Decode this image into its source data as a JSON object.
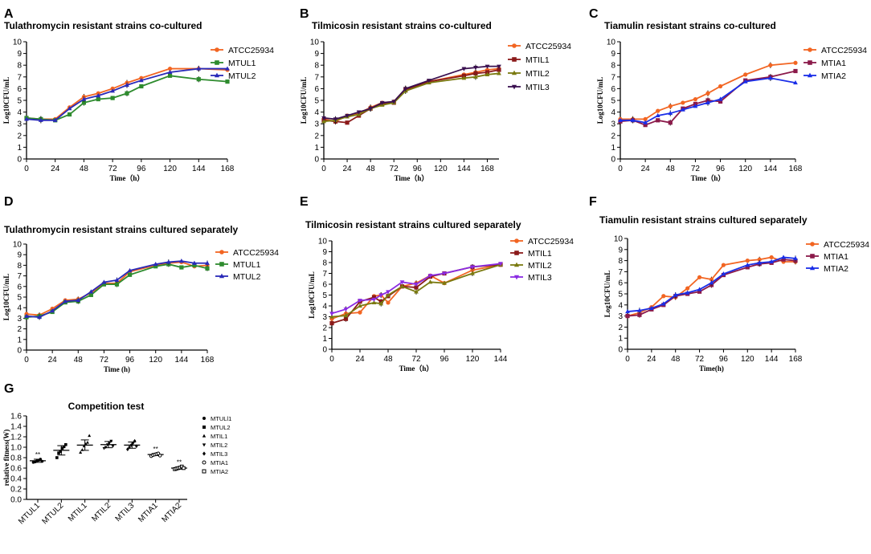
{
  "figure": {
    "colors": {
      "ATCC25934": "#f26522",
      "MTUL1": "#2e8b2e",
      "MTUL2": "#2a2ab8",
      "MTIL1": "#8b1a1a",
      "MTIL2": "#7a7a10",
      "MTIL3": "#3a1050",
      "MTIL3_sep": "#8a2be2",
      "MTIA1": "#8b1a4a",
      "MTIA2": "#1a2ee8"
    }
  },
  "chart_data": [
    {
      "panel": "A",
      "type": "line",
      "title": "Tulathromycin resistant strains co-cultured",
      "xlabel": "Time（h）",
      "ylabel": "Log10CFU/mL",
      "xlim": [
        0,
        168
      ],
      "ylim": [
        0,
        10
      ],
      "xticks": [
        0,
        24,
        48,
        72,
        96,
        120,
        144,
        168
      ],
      "yticks": [
        0,
        1,
        2,
        3,
        4,
        5,
        6,
        7,
        8,
        9,
        10
      ],
      "series": [
        {
          "name": "ATCC25934",
          "color_key": "ATCC25934",
          "marker": "circle",
          "x": [
            0,
            12,
            24,
            36,
            48,
            60,
            72,
            84,
            96,
            120,
            144,
            168
          ],
          "y": [
            3.5,
            3.4,
            3.4,
            4.4,
            5.3,
            5.6,
            6.0,
            6.5,
            6.9,
            7.7,
            7.7,
            7.6
          ]
        },
        {
          "name": "MTUL1",
          "color_key": "MTUL1",
          "marker": "square",
          "x": [
            0,
            12,
            24,
            36,
            48,
            60,
            72,
            84,
            96,
            120,
            144,
            168
          ],
          "y": [
            3.5,
            3.4,
            3.3,
            3.8,
            4.8,
            5.1,
            5.2,
            5.6,
            6.2,
            7.1,
            6.8,
            6.6
          ]
        },
        {
          "name": "MTUL2",
          "color_key": "MTUL2",
          "marker": "triangle",
          "x": [
            0,
            12,
            24,
            36,
            48,
            60,
            72,
            84,
            96,
            120,
            144,
            168
          ],
          "y": [
            3.4,
            3.3,
            3.3,
            4.3,
            5.1,
            5.4,
            5.8,
            6.3,
            6.7,
            7.4,
            7.7,
            7.7
          ]
        }
      ]
    },
    {
      "panel": "B",
      "type": "line",
      "title": "Tilmicosin resistant strains co-cultured",
      "xlabel": "Time（h）",
      "ylabel": "Log10CFU/mL",
      "xlim": [
        0,
        180
      ],
      "ylim": [
        0,
        10
      ],
      "xticks": [
        0,
        24,
        48,
        72,
        96,
        120,
        144,
        168
      ],
      "yticks": [
        0,
        1,
        2,
        3,
        4,
        5,
        6,
        7,
        8,
        9,
        10
      ],
      "series": [
        {
          "name": "ATCC25934",
          "color_key": "ATCC25934",
          "marker": "circle",
          "x": [
            0,
            12,
            24,
            36,
            48,
            60,
            72,
            84,
            108,
            144,
            156,
            168,
            180
          ],
          "y": [
            3.4,
            3.2,
            3.7,
            3.9,
            4.4,
            4.8,
            4.9,
            6.0,
            6.6,
            7.2,
            7.4,
            7.6,
            7.7
          ]
        },
        {
          "name": "MTIL1",
          "color_key": "MTIL1",
          "marker": "square",
          "x": [
            0,
            12,
            24,
            36,
            48,
            60,
            72,
            84,
            108,
            144,
            156,
            168,
            180
          ],
          "y": [
            3.3,
            3.2,
            3.1,
            3.7,
            4.3,
            4.7,
            4.8,
            5.9,
            6.6,
            7.1,
            7.3,
            7.4,
            7.6
          ]
        },
        {
          "name": "MTIL2",
          "color_key": "MTIL2",
          "marker": "triangle",
          "x": [
            0,
            12,
            24,
            36,
            48,
            60,
            72,
            84,
            108,
            144,
            156,
            168,
            180
          ],
          "y": [
            3.2,
            3.3,
            3.6,
            3.8,
            4.3,
            4.6,
            4.8,
            5.8,
            6.5,
            6.9,
            7.0,
            7.2,
            7.3
          ]
        },
        {
          "name": "MTIL3",
          "color_key": "MTIL3",
          "marker": "triangle-down",
          "x": [
            0,
            12,
            24,
            36,
            48,
            60,
            72,
            84,
            108,
            144,
            156,
            168,
            180
          ],
          "y": [
            3.5,
            3.4,
            3.7,
            4.0,
            4.3,
            4.8,
            4.9,
            6.0,
            6.7,
            7.7,
            7.8,
            7.9,
            7.9
          ]
        }
      ]
    },
    {
      "panel": "C",
      "type": "line",
      "title": "Tiamulin resistant strains co-cultured",
      "xlabel": "Time（h）",
      "ylabel": "Log10CFU/mL",
      "xlim": [
        0,
        168
      ],
      "ylim": [
        0,
        10
      ],
      "xticks": [
        0,
        24,
        48,
        72,
        96,
        120,
        144,
        168
      ],
      "yticks": [
        0,
        1,
        2,
        3,
        4,
        5,
        6,
        7,
        8,
        9,
        10
      ],
      "series": [
        {
          "name": "ATCC25934",
          "color_key": "ATCC25934",
          "marker": "circle",
          "x": [
            0,
            12,
            24,
            36,
            48,
            60,
            72,
            84,
            96,
            120,
            144,
            168
          ],
          "y": [
            3.4,
            3.4,
            3.4,
            4.1,
            4.5,
            4.8,
            5.1,
            5.6,
            6.2,
            7.2,
            8.0,
            8.2
          ]
        },
        {
          "name": "MTIA1",
          "color_key": "MTIA1",
          "marker": "square",
          "x": [
            0,
            12,
            24,
            36,
            48,
            60,
            72,
            84,
            96,
            120,
            144,
            168
          ],
          "y": [
            3.2,
            3.3,
            2.9,
            3.3,
            3.1,
            4.3,
            4.7,
            5.0,
            4.9,
            6.7,
            7.0,
            7.5
          ]
        },
        {
          "name": "MTIA2",
          "color_key": "MTIA2",
          "marker": "triangle",
          "x": [
            0,
            12,
            24,
            36,
            48,
            60,
            72,
            84,
            96,
            120,
            144,
            168
          ],
          "y": [
            3.3,
            3.3,
            3.1,
            3.7,
            3.9,
            4.2,
            4.5,
            4.8,
            5.1,
            6.6,
            6.9,
            6.5
          ]
        }
      ]
    },
    {
      "panel": "D",
      "type": "line",
      "title": "Tulathromycin resistant strains cultured separately",
      "xlabel": "Time  (h)",
      "ylabel": "Log10CFU/mL",
      "xlim": [
        0,
        168
      ],
      "ylim": [
        0,
        10
      ],
      "xticks": [
        0,
        24,
        48,
        72,
        96,
        120,
        144,
        168
      ],
      "yticks": [
        0,
        1,
        2,
        3,
        4,
        5,
        6,
        7,
        8,
        9,
        10
      ],
      "series": [
        {
          "name": "ATCC25934",
          "color_key": "ATCC25934",
          "marker": "circle",
          "x": [
            0,
            12,
            24,
            36,
            48,
            60,
            72,
            84,
            96,
            120,
            132,
            144,
            156,
            168
          ],
          "y": [
            3.4,
            3.3,
            3.9,
            4.7,
            4.8,
            5.4,
            6.3,
            6.3,
            7.4,
            8.0,
            8.2,
            8.3,
            7.9,
            8.0
          ]
        },
        {
          "name": "MTUL1",
          "color_key": "MTUL1",
          "marker": "square",
          "x": [
            0,
            12,
            24,
            36,
            48,
            60,
            72,
            84,
            96,
            120,
            132,
            144,
            156,
            168
          ],
          "y": [
            3.1,
            3.2,
            3.6,
            4.5,
            4.6,
            5.2,
            6.2,
            6.2,
            7.1,
            7.9,
            8.1,
            7.8,
            8.0,
            7.7
          ]
        },
        {
          "name": "MTUL2",
          "color_key": "MTUL2",
          "marker": "triangle",
          "x": [
            0,
            12,
            24,
            36,
            48,
            60,
            72,
            84,
            96,
            120,
            132,
            144,
            156,
            168
          ],
          "y": [
            3.2,
            3.1,
            3.7,
            4.6,
            4.7,
            5.5,
            6.4,
            6.6,
            7.5,
            8.1,
            8.3,
            8.4,
            8.2,
            8.2
          ]
        }
      ]
    },
    {
      "panel": "E",
      "type": "line",
      "title": "Tilmicosin resistant strains cultured separately",
      "xlabel": "Time（h）",
      "ylabel": "Log10CFU/mL",
      "xlim": [
        0,
        144
      ],
      "ylim": [
        0,
        10
      ],
      "xticks": [
        0,
        24,
        48,
        72,
        96,
        120,
        144
      ],
      "yticks": [
        0,
        1,
        2,
        3,
        4,
        5,
        6,
        7,
        8,
        9,
        10
      ],
      "series": [
        {
          "name": "ATCC25934",
          "color_key": "ATCC25934",
          "marker": "circle",
          "x": [
            0,
            12,
            24,
            36,
            42,
            48,
            60,
            72,
            84,
            96,
            120,
            144
          ],
          "y": [
            2.8,
            3.3,
            3.4,
            4.9,
            5.0,
            4.3,
            5.8,
            6.1,
            6.8,
            6.1,
            7.3,
            7.8
          ]
        },
        {
          "name": "MTIL1",
          "color_key": "MTIL1",
          "marker": "square",
          "x": [
            0,
            12,
            24,
            36,
            42,
            48,
            60,
            72,
            84,
            96,
            120,
            144
          ],
          "y": [
            2.4,
            2.8,
            4.4,
            4.8,
            4.4,
            4.9,
            5.8,
            5.7,
            6.7,
            7.0,
            7.6,
            7.8
          ]
        },
        {
          "name": "MTIL2",
          "color_key": "MTIL2",
          "marker": "triangle",
          "x": [
            0,
            12,
            24,
            36,
            42,
            48,
            60,
            72,
            84,
            96,
            120,
            144
          ],
          "y": [
            3.0,
            3.1,
            4.0,
            4.3,
            4.2,
            5.0,
            5.8,
            5.3,
            6.2,
            6.1,
            7.0,
            7.8
          ]
        },
        {
          "name": "MTIL3",
          "color_key": "MTIL3_sep",
          "marker": "triangle-down",
          "x": [
            0,
            12,
            24,
            36,
            42,
            48,
            60,
            72,
            84,
            96,
            120,
            144
          ],
          "y": [
            3.3,
            3.7,
            4.5,
            4.6,
            5.0,
            5.3,
            6.2,
            6.0,
            6.8,
            7.0,
            7.6,
            7.9
          ]
        }
      ]
    },
    {
      "panel": "F",
      "type": "line",
      "title": "Tiamulin resistant strains cultured separately",
      "xlabel": "Time(h)",
      "ylabel": "Log10CFU/mL",
      "xlim": [
        0,
        168
      ],
      "ylim": [
        0,
        10
      ],
      "xticks": [
        0,
        24,
        48,
        72,
        96,
        120,
        144,
        168
      ],
      "yticks": [
        0,
        1,
        2,
        3,
        4,
        5,
        6,
        7,
        8,
        9,
        10
      ],
      "series": [
        {
          "name": "ATCC25934",
          "color_key": "ATCC25934",
          "marker": "circle",
          "x": [
            0,
            12,
            24,
            36,
            48,
            60,
            72,
            84,
            96,
            120,
            132,
            144,
            156,
            168
          ],
          "y": [
            3.0,
            3.3,
            3.8,
            4.8,
            4.7,
            5.5,
            6.5,
            6.3,
            7.6,
            8.0,
            8.1,
            8.3,
            7.9,
            7.9
          ]
        },
        {
          "name": "MTIA1",
          "color_key": "MTIA1",
          "marker": "square",
          "x": [
            0,
            12,
            24,
            36,
            48,
            60,
            72,
            84,
            96,
            120,
            132,
            144,
            156,
            168
          ],
          "y": [
            3.0,
            3.1,
            3.6,
            4.0,
            4.8,
            5.0,
            5.2,
            5.8,
            6.7,
            7.4,
            7.7,
            7.8,
            8.1,
            8.0
          ]
        },
        {
          "name": "MTIA2",
          "color_key": "MTIA2",
          "marker": "triangle",
          "x": [
            0,
            12,
            24,
            36,
            48,
            60,
            72,
            84,
            96,
            120,
            132,
            144,
            156,
            168
          ],
          "y": [
            3.4,
            3.5,
            3.7,
            4.1,
            4.9,
            5.1,
            5.4,
            6.0,
            6.8,
            7.6,
            7.8,
            7.9,
            8.3,
            8.2
          ]
        }
      ]
    },
    {
      "panel": "G",
      "type": "scatter",
      "title": "Competition test",
      "xlabel": "",
      "ylabel": "relative fitness(W)",
      "ylim": [
        0,
        1.6
      ],
      "yticks": [
        0.0,
        0.2,
        0.4,
        0.6,
        0.8,
        1.0,
        1.2,
        1.4,
        1.6
      ],
      "categories": [
        "MTUL1",
        "MTUL2",
        "MTIL1",
        "MTIL2",
        "MTIL3",
        "MTIA1",
        "MTIA2"
      ],
      "legend_labels": [
        "MTULl1",
        "MTUL2",
        "MTIL1",
        "MTIL2",
        "MTIL3",
        "MTIA1",
        "MTIA2"
      ],
      "markers": [
        "circle",
        "square",
        "triangle",
        "triangle-down",
        "diamond",
        "circle-open",
        "square-open"
      ],
      "points": [
        [
          0.71,
          0.72,
          0.74,
          0.75,
          0.77,
          0.73
        ],
        [
          0.8,
          0.89,
          0.92,
          0.98,
          1.01,
          1.05
        ],
        [
          0.9,
          0.95,
          1.02,
          1.06,
          1.09,
          1.22
        ],
        [
          0.98,
          1.0,
          1.05,
          1.08,
          1.12,
          1.02
        ],
        [
          0.96,
          1.0,
          1.04,
          1.08,
          1.12,
          1.02
        ],
        [
          0.83,
          0.85,
          0.86,
          0.87,
          0.88,
          0.84
        ],
        [
          0.58,
          0.59,
          0.6,
          0.61,
          0.63,
          0.6
        ]
      ],
      "means": [
        0.74,
        0.94,
        1.04,
        1.05,
        1.04,
        0.86,
        0.6
      ],
      "sds": [
        0.03,
        0.09,
        0.1,
        0.06,
        0.06,
        0.02,
        0.02
      ],
      "significance": [
        "**",
        "",
        "",
        "",
        "",
        "**",
        "**"
      ]
    }
  ]
}
